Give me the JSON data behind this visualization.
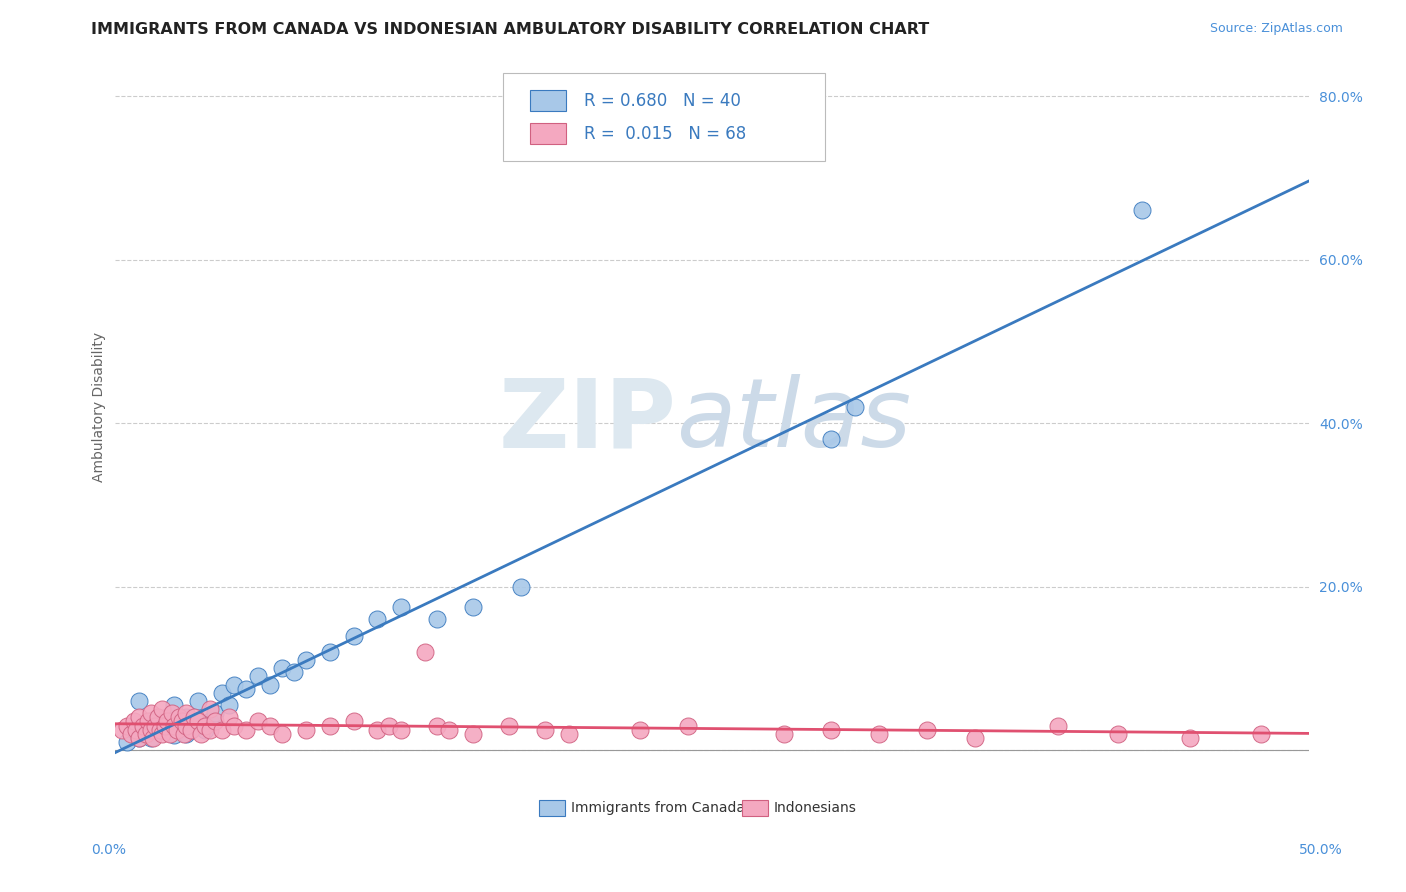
{
  "title": "IMMIGRANTS FROM CANADA VS INDONESIAN AMBULATORY DISABILITY CORRELATION CHART",
  "source": "Source: ZipAtlas.com",
  "ylabel": "Ambulatory Disability",
  "legend_label_1": "Immigrants from Canada",
  "legend_label_2": "Indonesians",
  "watermark_zip": "ZIP",
  "watermark_atlas": "atlas",
  "xmin": 0.0,
  "xmax": 0.5,
  "ymin": -0.01,
  "ymax": 0.85,
  "yticks": [
    0.0,
    0.2,
    0.4,
    0.6,
    0.8
  ],
  "ytick_labels": [
    "",
    "20.0%",
    "40.0%",
    "60.0%",
    "80.0%"
  ],
  "color_blue": "#a8c8e8",
  "color_pink": "#f4a8c0",
  "color_line_blue": "#3a7abf",
  "color_line_red": "#e05070",
  "background_color": "#ffffff",
  "grid_color": "#cccccc",
  "blue_points_x": [
    0.005,
    0.008,
    0.01,
    0.01,
    0.012,
    0.015,
    0.015,
    0.018,
    0.02,
    0.022,
    0.025,
    0.025,
    0.028,
    0.03,
    0.03,
    0.032,
    0.035,
    0.035,
    0.038,
    0.04,
    0.042,
    0.045,
    0.048,
    0.05,
    0.055,
    0.06,
    0.065,
    0.07,
    0.075,
    0.08,
    0.09,
    0.1,
    0.11,
    0.12,
    0.135,
    0.15,
    0.17,
    0.3,
    0.31,
    0.43
  ],
  "blue_points_y": [
    0.01,
    0.025,
    0.015,
    0.06,
    0.02,
    0.015,
    0.035,
    0.03,
    0.025,
    0.04,
    0.018,
    0.055,
    0.03,
    0.02,
    0.04,
    0.025,
    0.03,
    0.06,
    0.025,
    0.035,
    0.045,
    0.07,
    0.055,
    0.08,
    0.075,
    0.09,
    0.08,
    0.1,
    0.095,
    0.11,
    0.12,
    0.14,
    0.16,
    0.175,
    0.16,
    0.175,
    0.2,
    0.38,
    0.42,
    0.66
  ],
  "pink_points_x": [
    0.003,
    0.005,
    0.007,
    0.008,
    0.009,
    0.01,
    0.01,
    0.012,
    0.013,
    0.014,
    0.015,
    0.015,
    0.016,
    0.017,
    0.018,
    0.019,
    0.02,
    0.02,
    0.021,
    0.022,
    0.023,
    0.024,
    0.025,
    0.026,
    0.027,
    0.028,
    0.029,
    0.03,
    0.03,
    0.032,
    0.033,
    0.035,
    0.036,
    0.038,
    0.04,
    0.04,
    0.042,
    0.045,
    0.048,
    0.05,
    0.055,
    0.06,
    0.065,
    0.07,
    0.08,
    0.09,
    0.1,
    0.11,
    0.115,
    0.12,
    0.13,
    0.135,
    0.14,
    0.15,
    0.165,
    0.18,
    0.19,
    0.22,
    0.24,
    0.28,
    0.3,
    0.32,
    0.34,
    0.36,
    0.395,
    0.42,
    0.45,
    0.48
  ],
  "pink_points_y": [
    0.025,
    0.03,
    0.02,
    0.035,
    0.025,
    0.015,
    0.04,
    0.03,
    0.02,
    0.035,
    0.025,
    0.045,
    0.015,
    0.03,
    0.04,
    0.025,
    0.02,
    0.05,
    0.03,
    0.035,
    0.02,
    0.045,
    0.03,
    0.025,
    0.04,
    0.035,
    0.02,
    0.045,
    0.03,
    0.025,
    0.04,
    0.035,
    0.02,
    0.03,
    0.025,
    0.05,
    0.035,
    0.025,
    0.04,
    0.03,
    0.025,
    0.035,
    0.03,
    0.02,
    0.025,
    0.03,
    0.035,
    0.025,
    0.03,
    0.025,
    0.12,
    0.03,
    0.025,
    0.02,
    0.03,
    0.025,
    0.02,
    0.025,
    0.03,
    0.02,
    0.025,
    0.02,
    0.025,
    0.015,
    0.03,
    0.02,
    0.015,
    0.02
  ],
  "title_fontsize": 11.5,
  "axis_label_fontsize": 10,
  "tick_fontsize": 10,
  "source_fontsize": 9
}
